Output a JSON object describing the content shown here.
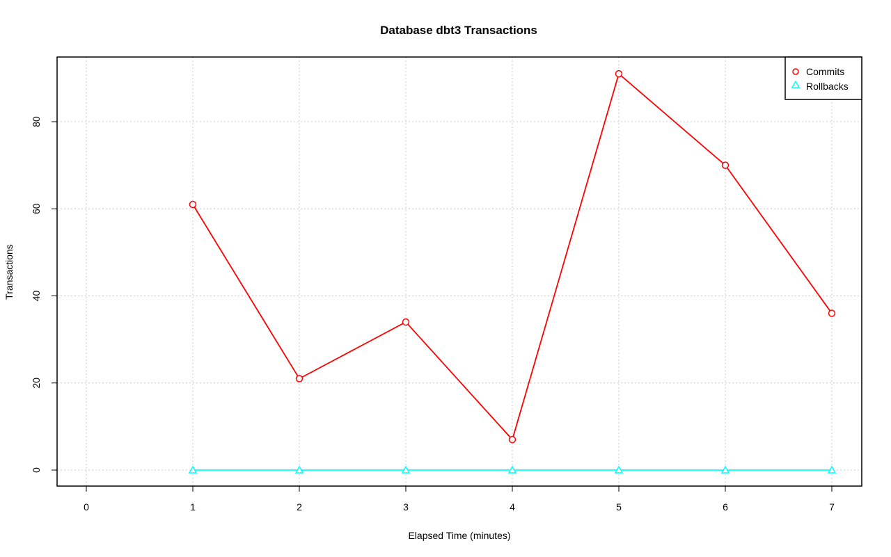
{
  "chart_data": {
    "type": "line",
    "title": "Database dbt3 Transactions",
    "xlabel": "Elapsed Time (minutes)",
    "ylabel": "Transactions",
    "xlim": [
      0,
      7
    ],
    "ylim": [
      -3.6,
      95
    ],
    "xticks": [
      0,
      1,
      2,
      3,
      4,
      5,
      6,
      7
    ],
    "yticks": [
      0,
      20,
      40,
      60,
      80
    ],
    "grid": true,
    "legend_position": "top-right",
    "x": [
      1,
      2,
      3,
      4,
      5,
      6,
      7
    ],
    "series": [
      {
        "name": "Commits",
        "color": "#ff0000",
        "marker": "circle",
        "values": [
          61,
          21,
          34,
          7,
          91,
          70,
          36
        ]
      },
      {
        "name": "Rollbacks",
        "color": "#00ffff",
        "marker": "triangle",
        "values": [
          0,
          0,
          0,
          0,
          0,
          0,
          0
        ]
      }
    ]
  }
}
